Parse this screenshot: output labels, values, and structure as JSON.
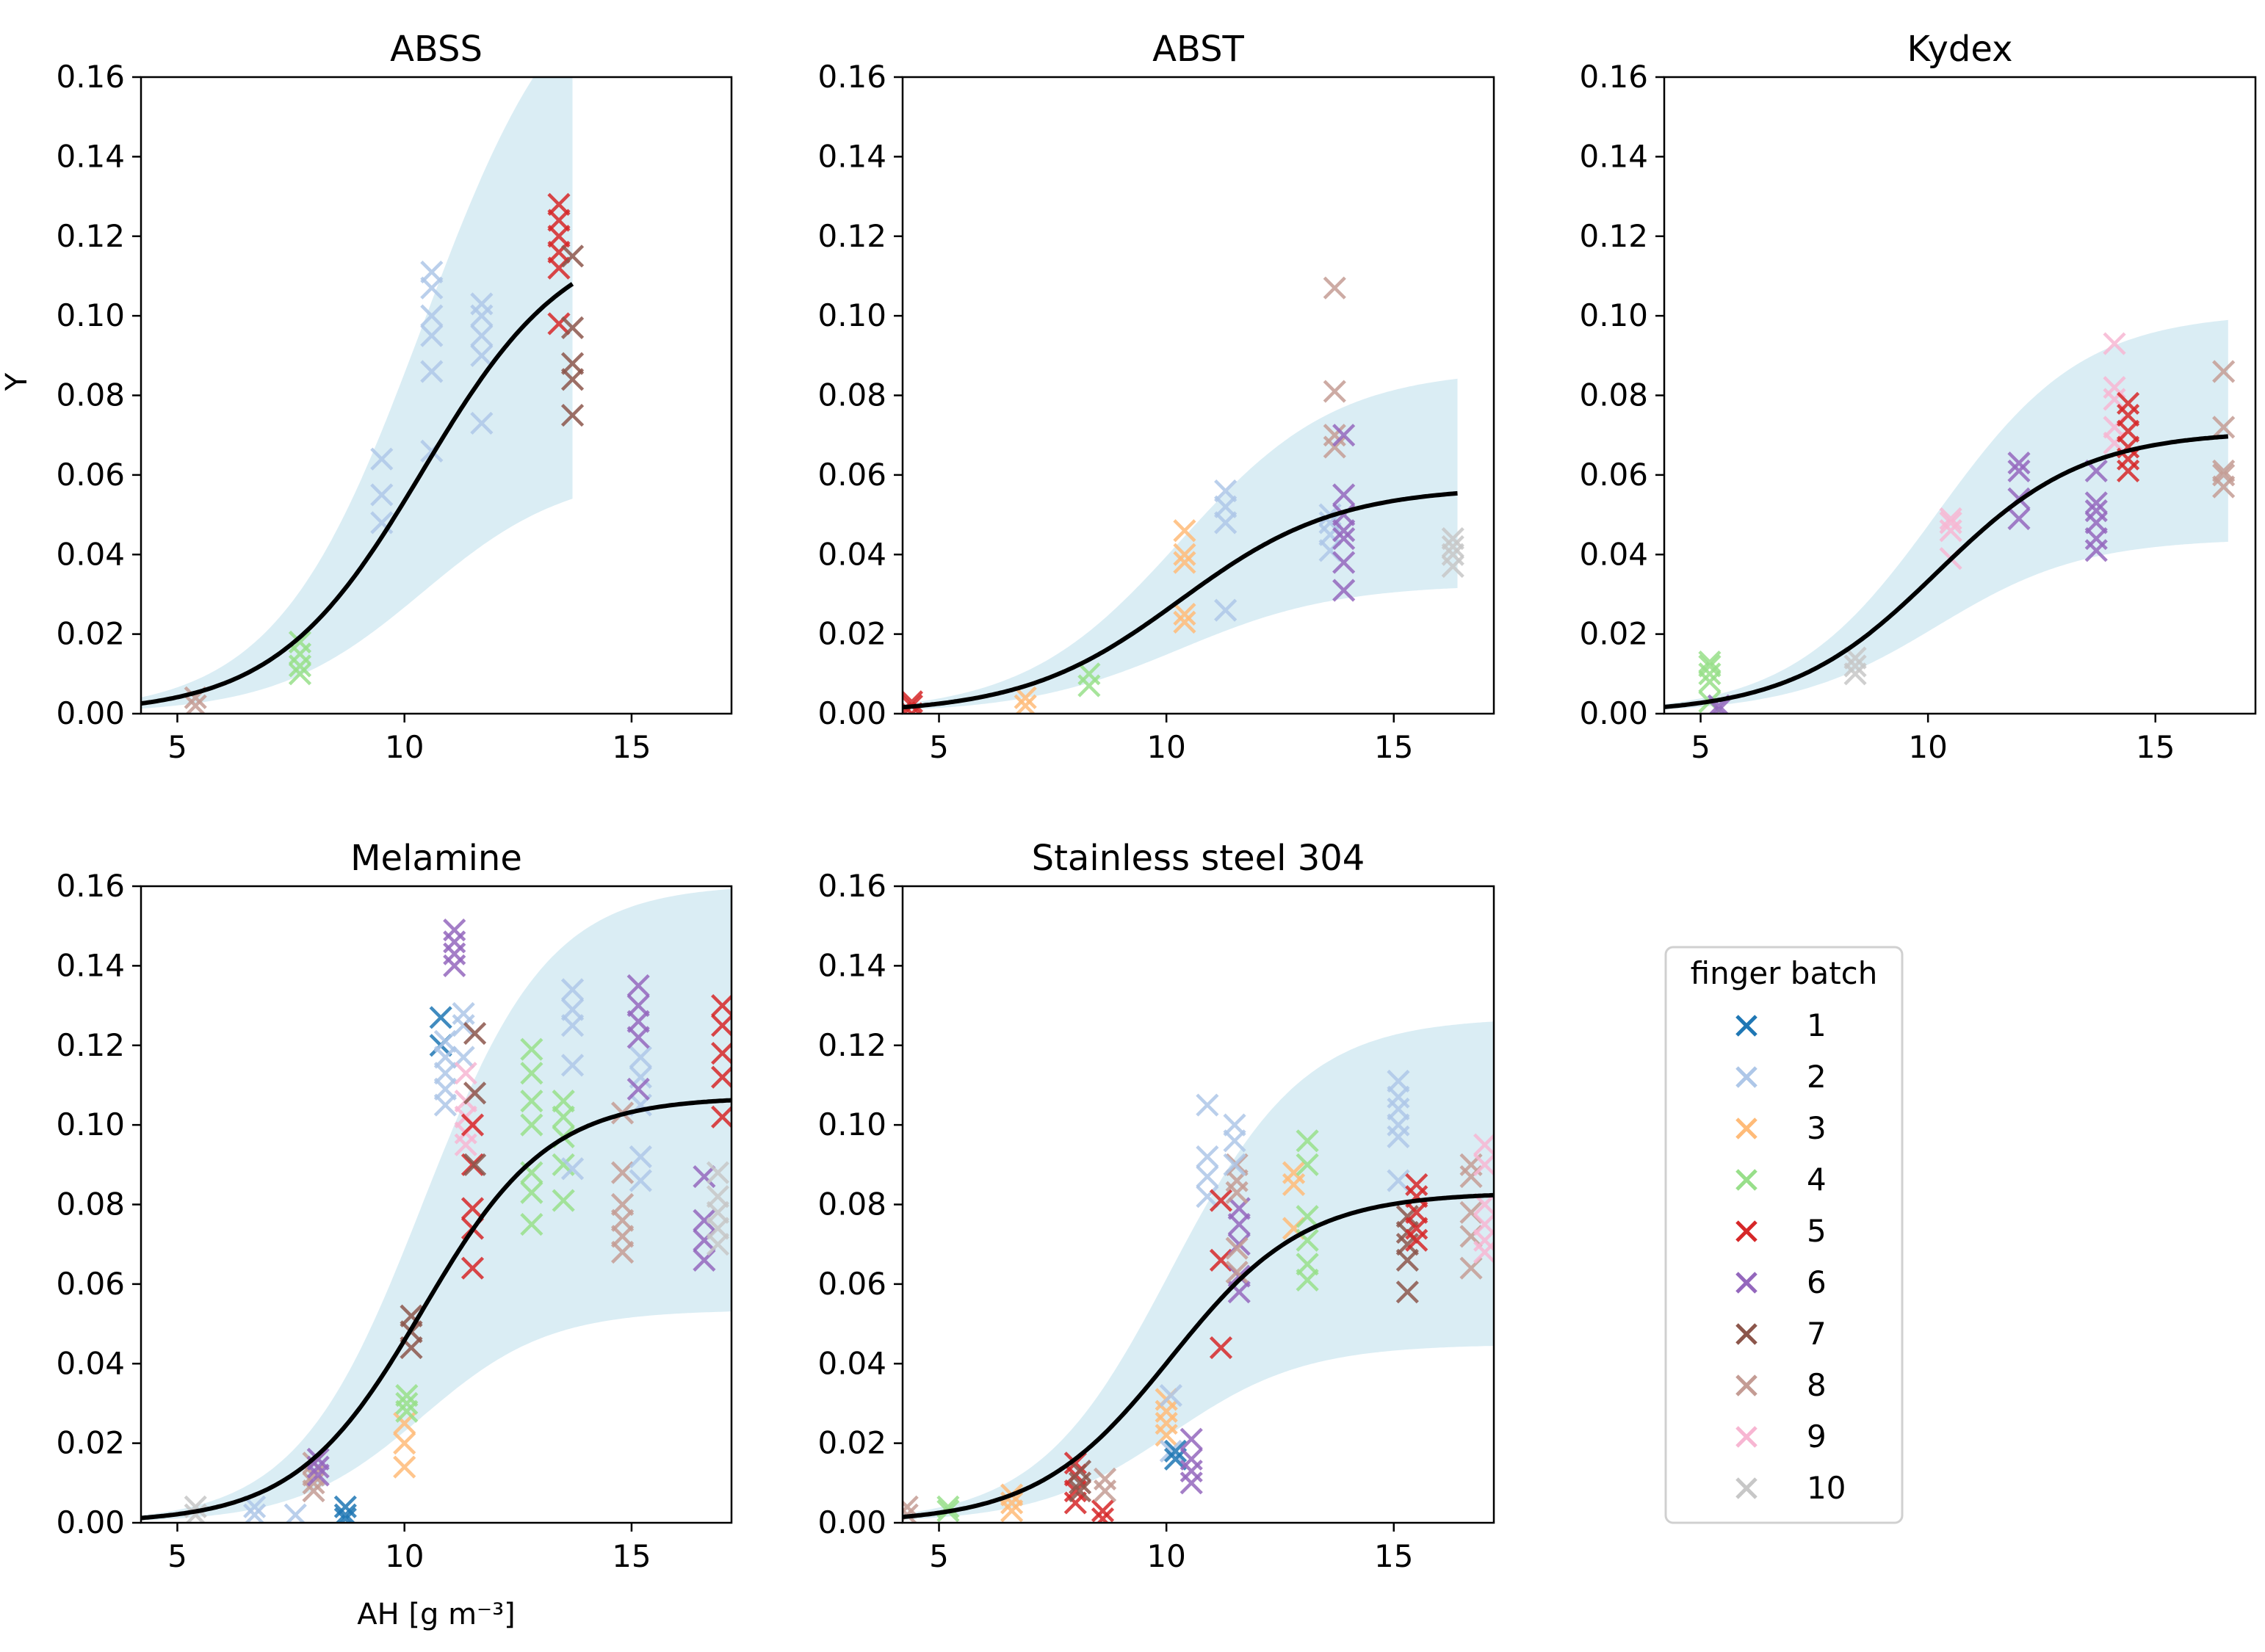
{
  "figure": {
    "ylabel": "Y",
    "xlabel": "AH [g m⁻³]",
    "legend": {
      "title": "finger batch",
      "entries": [
        {
          "label": "1",
          "color": "#1f77b4"
        },
        {
          "label": "2",
          "color": "#aec7e8"
        },
        {
          "label": "3",
          "color": "#ffbb78"
        },
        {
          "label": "4",
          "color": "#98df8a"
        },
        {
          "label": "5",
          "color": "#d62728"
        },
        {
          "label": "6",
          "color": "#9467bd"
        },
        {
          "label": "7",
          "color": "#8c564b"
        },
        {
          "label": "8",
          "color": "#c49c94"
        },
        {
          "label": "9",
          "color": "#f7b6d2"
        },
        {
          "label": "10",
          "color": "#c7c7c7"
        }
      ]
    }
  },
  "chart_data": [
    {
      "type": "scatter",
      "title": "ABSS",
      "xlim": [
        4.2,
        17.2
      ],
      "ylim": [
        0,
        0.16
      ],
      "xticks": [
        "5",
        "10",
        "15"
      ],
      "yticks": [
        "0.00",
        "0.02",
        "0.04",
        "0.06",
        "0.08",
        "0.10",
        "0.12",
        "0.14",
        "0.16"
      ],
      "fit": {
        "L": 0.122,
        "k": 0.62,
        "x0": 10.4,
        "band_lo": 0.5,
        "band_hi": 1.6,
        "xmax": 13.7
      },
      "points": [
        {
          "batch": 8,
          "x": 5.4,
          "y": [
            0.002,
            0.004
          ]
        },
        {
          "batch": 4,
          "x": 7.7,
          "y": [
            0.01,
            0.012,
            0.015,
            0.018
          ]
        },
        {
          "batch": 2,
          "x": 9.5,
          "y": [
            0.048,
            0.055,
            0.064
          ]
        },
        {
          "batch": 2,
          "x": 10.6,
          "y": [
            0.066,
            0.086,
            0.095,
            0.1,
            0.107,
            0.111
          ]
        },
        {
          "batch": 2,
          "x": 11.7,
          "y": [
            0.073,
            0.09,
            0.095,
            0.1,
            0.103
          ]
        },
        {
          "batch": 5,
          "x": 13.4,
          "y": [
            0.098,
            0.112,
            0.116,
            0.12,
            0.124,
            0.128
          ]
        },
        {
          "batch": 7,
          "x": 13.7,
          "y": [
            0.075,
            0.084,
            0.088,
            0.097,
            0.115
          ]
        }
      ]
    },
    {
      "type": "scatter",
      "title": "ABST",
      "xlim": [
        4.2,
        17.2
      ],
      "ylim": [
        0,
        0.16
      ],
      "xticks": [
        "5",
        "10",
        "15"
      ],
      "yticks": [
        "0.00",
        "0.02",
        "0.04",
        "0.06",
        "0.08",
        "0.10",
        "0.12",
        "0.14",
        "0.16"
      ],
      "fit": {
        "L": 0.057,
        "k": 0.58,
        "x0": 10.3,
        "band_lo": 0.57,
        "band_hi": 1.52,
        "xmax": 16.4
      },
      "points": [
        {
          "batch": 5,
          "x": 4.4,
          "y": [
            0.0,
            0.002,
            0.003
          ]
        },
        {
          "batch": 3,
          "x": 6.9,
          "y": [
            0.002,
            0.004
          ]
        },
        {
          "batch": 4,
          "x": 8.3,
          "y": [
            0.007,
            0.01
          ]
        },
        {
          "batch": 3,
          "x": 10.4,
          "y": [
            0.023,
            0.025,
            0.038,
            0.04,
            0.046
          ]
        },
        {
          "batch": 2,
          "x": 11.3,
          "y": [
            0.026,
            0.048,
            0.052,
            0.056
          ]
        },
        {
          "batch": 2,
          "x": 13.6,
          "y": [
            0.041,
            0.045,
            0.048,
            0.05
          ]
        },
        {
          "batch": 8,
          "x": 13.7,
          "y": [
            0.067,
            0.07,
            0.081,
            0.107
          ]
        },
        {
          "batch": 6,
          "x": 13.9,
          "y": [
            0.031,
            0.038,
            0.044,
            0.046,
            0.05,
            0.055,
            0.07
          ]
        },
        {
          "batch": 10,
          "x": 16.3,
          "y": [
            0.037,
            0.04,
            0.042,
            0.044
          ]
        }
      ]
    },
    {
      "type": "scatter",
      "title": "Kydex",
      "xlim": [
        4.2,
        17.2
      ],
      "ylim": [
        0,
        0.16
      ],
      "xticks": [
        "5",
        "10",
        "15"
      ],
      "yticks": [
        "0.00",
        "0.02",
        "0.04",
        "0.06",
        "0.08",
        "0.10",
        "0.12",
        "0.14",
        "0.16"
      ],
      "fit": {
        "L": 0.071,
        "k": 0.62,
        "x0": 10.2,
        "band_lo": 0.62,
        "band_hi": 1.42,
        "xmax": 16.6
      },
      "points": [
        {
          "batch": 4,
          "x": 5.2,
          "y": [
            0.003,
            0.008,
            0.01,
            0.012,
            0.013
          ]
        },
        {
          "batch": 6,
          "x": 5.4,
          "y": [
            0.001,
            0.002
          ]
        },
        {
          "batch": 10,
          "x": 8.4,
          "y": [
            0.01,
            0.012,
            0.014
          ]
        },
        {
          "batch": 9,
          "x": 10.5,
          "y": [
            0.039,
            0.046,
            0.048,
            0.049
          ]
        },
        {
          "batch": 6,
          "x": 12.0,
          "y": [
            0.049,
            0.054,
            0.061,
            0.063
          ]
        },
        {
          "batch": 6,
          "x": 13.7,
          "y": [
            0.041,
            0.044,
            0.048,
            0.051,
            0.053,
            0.061
          ]
        },
        {
          "batch": 9,
          "x": 14.1,
          "y": [
            0.068,
            0.072,
            0.079,
            0.082,
            0.093
          ]
        },
        {
          "batch": 5,
          "x": 14.4,
          "y": [
            0.061,
            0.064,
            0.067,
            0.071,
            0.075,
            0.078
          ]
        },
        {
          "batch": 8,
          "x": 16.5,
          "y": [
            0.057,
            0.06,
            0.061,
            0.072,
            0.086
          ]
        }
      ]
    },
    {
      "type": "scatter",
      "title": "Melamine",
      "xlim": [
        4.2,
        17.2
      ],
      "ylim": [
        0,
        0.16
      ],
      "xticks": [
        "5",
        "10",
        "15"
      ],
      "yticks": [
        "0.00",
        "0.02",
        "0.04",
        "0.06",
        "0.08",
        "0.10",
        "0.12",
        "0.14",
        "0.16"
      ],
      "fit": {
        "L": 0.107,
        "k": 0.72,
        "x0": 10.4,
        "band_lo": 0.5,
        "band_hi": 1.5,
        "xmax": 17.2
      },
      "points": [
        {
          "batch": 10,
          "x": 5.4,
          "y": [
            0.002,
            0.004
          ]
        },
        {
          "batch": 2,
          "x": 6.7,
          "y": [
            0.002,
            0.004
          ]
        },
        {
          "batch": 2,
          "x": 7.6,
          "y": [
            0.002
          ]
        },
        {
          "batch": 8,
          "x": 8.0,
          "y": [
            0.008,
            0.01,
            0.012,
            0.015
          ]
        },
        {
          "batch": 6,
          "x": 8.1,
          "y": [
            0.012,
            0.014,
            0.016
          ]
        },
        {
          "batch": 1,
          "x": 8.7,
          "y": [
            0.001,
            0.002,
            0.004
          ]
        },
        {
          "batch": 3,
          "x": 10.0,
          "y": [
            0.014,
            0.02,
            0.025
          ]
        },
        {
          "batch": 4,
          "x": 10.05,
          "y": [
            0.028,
            0.03,
            0.032
          ]
        },
        {
          "batch": 7,
          "x": 10.15,
          "y": [
            0.044,
            0.048,
            0.052
          ]
        },
        {
          "batch": 1,
          "x": 10.8,
          "y": [
            0.12,
            0.127
          ]
        },
        {
          "batch": 2,
          "x": 10.9,
          "y": [
            0.105,
            0.109,
            0.113,
            0.117,
            0.121
          ]
        },
        {
          "batch": 6,
          "x": 11.1,
          "y": [
            0.14,
            0.143,
            0.146,
            0.149
          ]
        },
        {
          "batch": 2,
          "x": 11.3,
          "y": [
            0.117,
            0.125,
            0.128
          ]
        },
        {
          "batch": 9,
          "x": 11.35,
          "y": [
            0.095,
            0.098,
            0.102,
            0.106,
            0.113
          ]
        },
        {
          "batch": 5,
          "x": 11.5,
          "y": [
            0.064,
            0.074,
            0.079,
            0.09,
            0.1
          ]
        },
        {
          "batch": 7,
          "x": 11.55,
          "y": [
            0.09,
            0.108,
            0.123
          ]
        },
        {
          "batch": 4,
          "x": 12.8,
          "y": [
            0.075,
            0.083,
            0.088,
            0.1,
            0.106,
            0.113,
            0.119
          ]
        },
        {
          "batch": 4,
          "x": 13.5,
          "y": [
            0.081,
            0.09,
            0.097,
            0.102,
            0.106
          ]
        },
        {
          "batch": 2,
          "x": 13.7,
          "y": [
            0.089,
            0.115,
            0.125,
            0.129,
            0.134
          ]
        },
        {
          "batch": 8,
          "x": 14.8,
          "y": [
            0.068,
            0.072,
            0.076,
            0.08,
            0.088,
            0.103
          ]
        },
        {
          "batch": 2,
          "x": 15.2,
          "y": [
            0.086,
            0.092,
            0.105,
            0.112,
            0.117
          ]
        },
        {
          "batch": 6,
          "x": 15.15,
          "y": [
            0.109,
            0.122,
            0.126,
            0.13,
            0.135
          ]
        },
        {
          "batch": 6,
          "x": 16.6,
          "y": [
            0.066,
            0.071,
            0.076,
            0.087
          ]
        },
        {
          "batch": 10,
          "x": 16.9,
          "y": [
            0.07,
            0.074,
            0.078,
            0.082,
            0.088
          ]
        },
        {
          "batch": 5,
          "x": 17.0,
          "y": [
            0.102,
            0.112,
            0.118,
            0.125,
            0.13
          ]
        }
      ]
    },
    {
      "type": "scatter",
      "title": "Stainless steel 304",
      "xlim": [
        4.2,
        17.2
      ],
      "ylim": [
        0,
        0.16
      ],
      "xticks": [
        "5",
        "10",
        "15"
      ],
      "yticks": [
        "0.00",
        "0.02",
        "0.04",
        "0.06",
        "0.08",
        "0.10",
        "0.12",
        "0.14",
        "0.16"
      ],
      "fit": {
        "L": 0.083,
        "k": 0.68,
        "x0": 10.1,
        "band_lo": 0.54,
        "band_hi": 1.53,
        "xmax": 17.2
      },
      "points": [
        {
          "batch": 8,
          "x": 4.3,
          "y": [
            0.002,
            0.004
          ]
        },
        {
          "batch": 4,
          "x": 5.2,
          "y": [
            0.003,
            0.004
          ]
        },
        {
          "batch": 3,
          "x": 6.6,
          "y": [
            0.003,
            0.005,
            0.007
          ]
        },
        {
          "batch": 5,
          "x": 8.0,
          "y": [
            0.005,
            0.008,
            0.012,
            0.015
          ]
        },
        {
          "batch": 7,
          "x": 8.1,
          "y": [
            0.008,
            0.01,
            0.013
          ]
        },
        {
          "batch": 5,
          "x": 8.6,
          "y": [
            0.001,
            0.003
          ]
        },
        {
          "batch": 8,
          "x": 8.65,
          "y": [
            0.008,
            0.011
          ]
        },
        {
          "batch": 3,
          "x": 10.0,
          "y": [
            0.022,
            0.025,
            0.028,
            0.031
          ]
        },
        {
          "batch": 2,
          "x": 10.1,
          "y": [
            0.018,
            0.032
          ]
        },
        {
          "batch": 1,
          "x": 10.2,
          "y": [
            0.016,
            0.018
          ]
        },
        {
          "batch": 6,
          "x": 10.55,
          "y": [
            0.01,
            0.013,
            0.016,
            0.021
          ]
        },
        {
          "batch": 2,
          "x": 10.9,
          "y": [
            0.082,
            0.087,
            0.092,
            0.105
          ]
        },
        {
          "batch": 5,
          "x": 11.2,
          "y": [
            0.044,
            0.066,
            0.081
          ]
        },
        {
          "batch": 6,
          "x": 11.6,
          "y": [
            0.058,
            0.062,
            0.07,
            0.075,
            0.079
          ]
        },
        {
          "batch": 8,
          "x": 11.55,
          "y": [
            0.063,
            0.069,
            0.083,
            0.086,
            0.09
          ]
        },
        {
          "batch": 2,
          "x": 11.5,
          "y": [
            0.09,
            0.096,
            0.1
          ]
        },
        {
          "batch": 3,
          "x": 12.8,
          "y": [
            0.074,
            0.085,
            0.088
          ]
        },
        {
          "batch": 4,
          "x": 13.1,
          "y": [
            0.061,
            0.065,
            0.071,
            0.077,
            0.09,
            0.096
          ]
        },
        {
          "batch": 2,
          "x": 15.1,
          "y": [
            0.086,
            0.097,
            0.1,
            0.104,
            0.107,
            0.111
          ]
        },
        {
          "batch": 7,
          "x": 15.3,
          "y": [
            0.058,
            0.066,
            0.07,
            0.073,
            0.077
          ]
        },
        {
          "batch": 5,
          "x": 15.5,
          "y": [
            0.071,
            0.074,
            0.078,
            0.082,
            0.085
          ]
        },
        {
          "batch": 8,
          "x": 16.7,
          "y": [
            0.064,
            0.072,
            0.078,
            0.087,
            0.09
          ]
        },
        {
          "batch": 9,
          "x": 17.0,
          "y": [
            0.068,
            0.071,
            0.075,
            0.08,
            0.09,
            0.095
          ]
        }
      ]
    }
  ]
}
